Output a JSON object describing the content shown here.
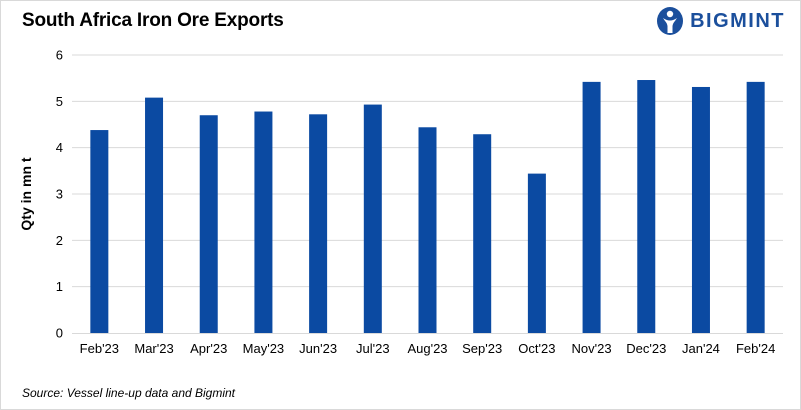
{
  "header": {
    "title": "South Africa Iron Ore Exports",
    "brand_name": "BIGMINT"
  },
  "footer": {
    "source": "Source: Vessel line-up data and Bigmint"
  },
  "colors": {
    "bar": "#0b4aa2",
    "brand": "#1b4f9c",
    "grid": "#d9d9d9"
  },
  "chart_data": {
    "type": "bar",
    "title": "South Africa Iron Ore Exports",
    "xlabel": "",
    "ylabel": "Qty in mn t",
    "ylim": [
      0,
      6
    ],
    "yticks": [
      0,
      1,
      2,
      3,
      4,
      5,
      6
    ],
    "grid": true,
    "categories": [
      "Feb'23",
      "Mar'23",
      "Apr'23",
      "May'23",
      "Jun'23",
      "Jul'23",
      "Aug'23",
      "Sep'23",
      "Oct'23",
      "Nov'23",
      "Dec'23",
      "Jan'24",
      "Feb'24"
    ],
    "values": [
      4.38,
      5.08,
      4.7,
      4.78,
      4.72,
      4.93,
      4.44,
      4.29,
      3.44,
      5.42,
      5.46,
      5.31,
      5.42
    ]
  }
}
